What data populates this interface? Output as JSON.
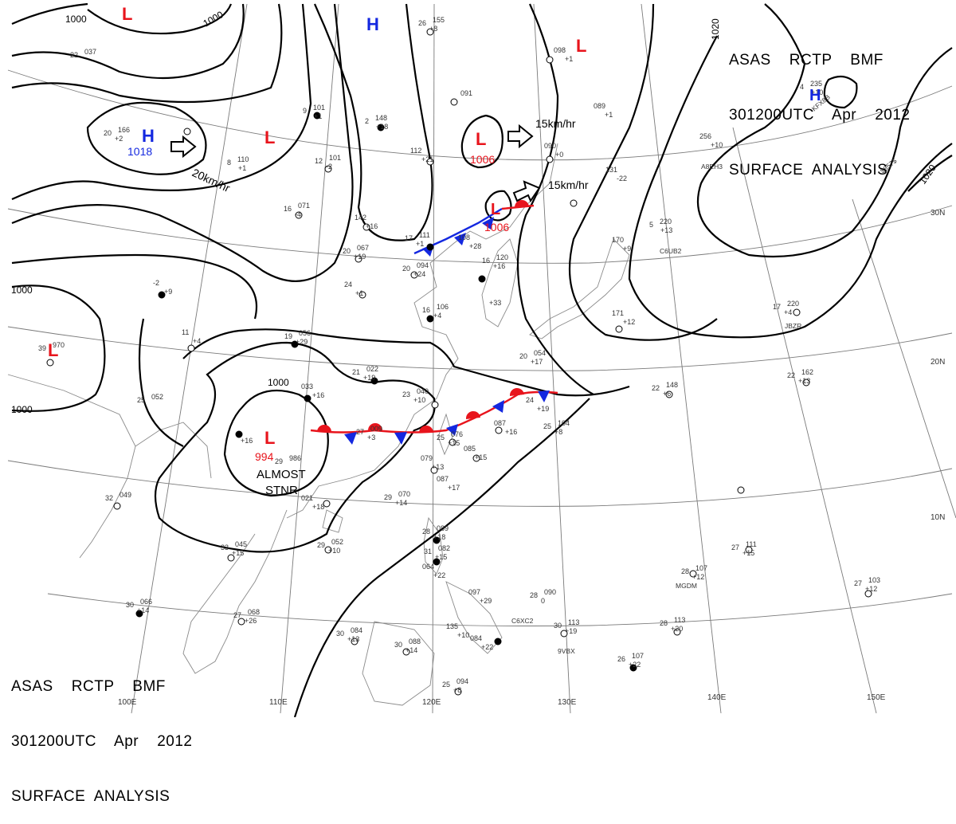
{
  "header_top": {
    "line1": "ASAS    RCTP    BMF",
    "line2": "301200UTC    Apr    2012",
    "line3": "SURFACE  ANALYSIS"
  },
  "header_bottom": {
    "line1": "ASAS    RCTP    BMF",
    "line2": "301200UTC    Apr    2012",
    "line3": "SURFACE  ANALYSIS"
  },
  "pressure_centers": [
    {
      "id": "l-north",
      "kind": "L",
      "value": ""
    },
    {
      "id": "h-northwest",
      "kind": "H",
      "value": "1018"
    },
    {
      "id": "l-mongolia",
      "kind": "L",
      "value": ""
    },
    {
      "id": "h-north",
      "kind": "H",
      "value": ""
    },
    {
      "id": "l-northeast",
      "kind": "L",
      "value": ""
    },
    {
      "id": "l-north-china",
      "kind": "L",
      "value": "1006"
    },
    {
      "id": "l-yellow-sea",
      "kind": "L",
      "value": "1006"
    },
    {
      "id": "l-india",
      "kind": "L",
      "value": ""
    },
    {
      "id": "l-indochina",
      "kind": "L",
      "value": "994"
    },
    {
      "id": "h-east",
      "kind": "H",
      "value": ""
    }
  ],
  "isobar_labels": [
    "1000",
    "1000",
    "1000",
    "1000",
    "1000",
    "1020",
    "1020"
  ],
  "motion_labels": [
    "20km/hr",
    "15km/hr",
    "15km/hr"
  ],
  "annotation": {
    "line1": "ALMOST",
    "line2": "STNR"
  },
  "longitude_labels": [
    "100E",
    "110E",
    "120E",
    "130E",
    "140E",
    "150E"
  ],
  "latitude_labels": [
    "30N",
    "20N",
    "10N"
  ],
  "colors": {
    "low": "#e8141c",
    "high": "#1428e0",
    "isobar": "#000000",
    "grid": "#7a7a7a",
    "coast": "#8a8a8a",
    "warm_front": "#e8141c",
    "cold_front": "#1428e0"
  },
  "station_reports": [
    {
      "temp": "26",
      "pressure": "155",
      "tend": "+8"
    },
    {
      "temp": "22",
      "pressure": "037",
      "tend": ""
    },
    {
      "temp": "",
      "pressure": "091",
      "tend": ""
    },
    {
      "temp": "",
      "pressure": "098",
      "tend": "+1"
    },
    {
      "temp": "9",
      "pressure": "101",
      "tend": "+1"
    },
    {
      "temp": "2",
      "pressure": "148",
      "tend": "+18"
    },
    {
      "temp": "8",
      "pressure": "110",
      "tend": "+1"
    },
    {
      "temp": "12",
      "pressure": "101",
      "tend": "-2"
    },
    {
      "temp": "",
      "pressure": "112",
      "tend": "+21"
    },
    {
      "temp": "",
      "pressure": "089",
      "tend": "+1"
    },
    {
      "temp": "",
      "pressure": "090",
      "tend": "+0"
    },
    {
      "temp": "",
      "pressure": "131",
      "tend": "-22"
    },
    {
      "temp": "",
      "pressure": "256",
      "tend": "+10"
    },
    {
      "temp": "4",
      "pressure": "235",
      "tend": "+10"
    },
    {
      "temp": "20",
      "pressure": "166",
      "tend": "+2"
    },
    {
      "temp": "16",
      "pressure": "071",
      "tend": "-4"
    },
    {
      "temp": "",
      "pressure": "142",
      "tend": "+16"
    },
    {
      "temp": "17",
      "pressure": "111",
      "tend": "+1"
    },
    {
      "temp": "",
      "pressure": "108",
      "tend": "+28"
    },
    {
      "temp": "20",
      "pressure": "067",
      "tend": "+19"
    },
    {
      "temp": "20",
      "pressure": "094",
      "tend": "+24"
    },
    {
      "temp": "16",
      "pressure": "120",
      "tend": "+16"
    },
    {
      "temp": "5",
      "pressure": "220",
      "tend": "+13"
    },
    {
      "temp": "",
      "pressure": "170",
      "tend": "+9"
    },
    {
      "temp": "17",
      "pressure": "220",
      "tend": "+4"
    },
    {
      "temp": "-2",
      "pressure": "",
      "tend": "+9"
    },
    {
      "temp": "24",
      "pressure": "",
      "tend": "+1"
    },
    {
      "temp": "",
      "pressure": "",
      "tend": "+33"
    },
    {
      "temp": "16",
      "pressure": "106",
      "tend": "+4"
    },
    {
      "temp": "",
      "pressure": "171",
      "tend": "+12"
    },
    {
      "temp": "11",
      "pressure": "",
      "tend": "+4"
    },
    {
      "temp": "19",
      "pressure": "056",
      "tend": "+29"
    },
    {
      "temp": "39",
      "pressure": "970",
      "tend": ""
    },
    {
      "temp": "21",
      "pressure": "022",
      "tend": "+19"
    },
    {
      "temp": "20",
      "pressure": "054",
      "tend": "+17"
    },
    {
      "temp": "22",
      "pressure": "148",
      "tend": "+6"
    },
    {
      "temp": "22",
      "pressure": "162",
      "tend": "+13"
    },
    {
      "temp": "25",
      "pressure": "052",
      "tend": ""
    },
    {
      "temp": "",
      "pressure": "033",
      "tend": "+16"
    },
    {
      "temp": "23",
      "pressure": "040",
      "tend": "+10"
    },
    {
      "temp": "24",
      "pressure": "",
      "tend": "+19"
    },
    {
      "temp": "",
      "pressure": "",
      "tend": "+16"
    },
    {
      "temp": "27",
      "pressure": "009",
      "tend": "+3"
    },
    {
      "temp": "25",
      "pressure": "076",
      "tend": "+15"
    },
    {
      "temp": "",
      "pressure": "087",
      "tend": "+16"
    },
    {
      "temp": "25",
      "pressure": "104",
      "tend": "+8"
    },
    {
      "temp": "29",
      "pressure": "986",
      "tend": ""
    },
    {
      "temp": "",
      "pressure": "079",
      "tend": "+13"
    },
    {
      "temp": "",
      "pressure": "085",
      "tend": "+15"
    },
    {
      "temp": "",
      "pressure": "087",
      "tend": "+17"
    },
    {
      "temp": "",
      "pressure": "021",
      "tend": "+18"
    },
    {
      "temp": "29",
      "pressure": "070",
      "tend": "+14"
    },
    {
      "temp": "32",
      "pressure": "049",
      "tend": ""
    },
    {
      "temp": "29",
      "pressure": "052",
      "tend": "+10"
    },
    {
      "temp": "28",
      "pressure": "089",
      "tend": "+18"
    },
    {
      "temp": "33",
      "pressure": "045",
      "tend": "+15"
    },
    {
      "temp": "31",
      "pressure": "082",
      "tend": "+15"
    },
    {
      "temp": "",
      "pressure": "064",
      "tend": "+22"
    },
    {
      "temp": "27",
      "pressure": "111",
      "tend": "+15"
    },
    {
      "temp": "28",
      "pressure": "107",
      "tend": "+12"
    },
    {
      "temp": "",
      "pressure": "097",
      "tend": "+29"
    },
    {
      "temp": "28",
      "pressure": "090",
      "tend": "0"
    },
    {
      "temp": "27",
      "pressure": "103",
      "tend": "+12"
    },
    {
      "temp": "30",
      "pressure": "066",
      "tend": "+14"
    },
    {
      "temp": "27",
      "pressure": "068",
      "tend": "+26"
    },
    {
      "temp": "30",
      "pressure": "084",
      "tend": "+13"
    },
    {
      "temp": "30",
      "pressure": "088",
      "tend": "+14"
    },
    {
      "temp": "",
      "pressure": "135",
      "tend": "+10"
    },
    {
      "temp": "",
      "pressure": "084",
      "tend": "+22"
    },
    {
      "temp": "30",
      "pressure": "113",
      "tend": "+19"
    },
    {
      "temp": "28",
      "pressure": "113",
      "tend": "+20"
    },
    {
      "temp": "26",
      "pressure": "107",
      "tend": "+22"
    },
    {
      "temp": "25",
      "pressure": "094",
      "tend": "+8"
    }
  ],
  "ship_ids": [
    "A8EH3",
    "C6UB2",
    "JBZR",
    "MGDM",
    "C6XC2",
    "9VBX",
    "KFX8B",
    "$857$"
  ]
}
